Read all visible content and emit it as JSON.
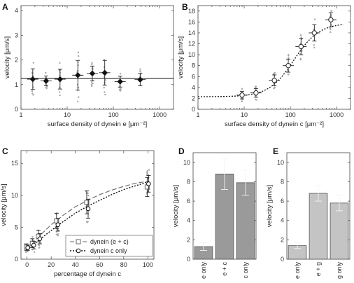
{
  "chart_data": [
    {
      "panel": "A",
      "type": "scatter",
      "xscale": "log",
      "xlim": [
        1,
        2000
      ],
      "ylim": [
        0,
        4.2
      ],
      "xticks": [
        "1",
        "10",
        "100",
        "1000"
      ],
      "yticks": [
        "0",
        "1",
        "2",
        "3",
        "4"
      ],
      "xlabel": "surface density of dynein e [μm⁻²]",
      "ylabel": "velocity [μm/s]",
      "means": [
        {
          "x": 1.8,
          "y": 1.22,
          "err": 0.42
        },
        {
          "x": 3.5,
          "y": 1.15,
          "err": 0.2
        },
        {
          "x": 7,
          "y": 1.22,
          "err": 0.4
        },
        {
          "x": 17,
          "y": 1.38,
          "err": 0.6
        },
        {
          "x": 35,
          "y": 1.45,
          "err": 0.3
        },
        {
          "x": 65,
          "y": 1.48,
          "err": 0.5
        },
        {
          "x": 140,
          "y": 1.12,
          "err": 0.22
        },
        {
          "x": 380,
          "y": 1.2,
          "err": 0.25
        }
      ],
      "fit_line_y": 1.25
    },
    {
      "panel": "B",
      "type": "scatter",
      "xscale": "log",
      "xlim": [
        1,
        2000
      ],
      "ylim": [
        0,
        19
      ],
      "xticks": [
        "1",
        "10",
        "100",
        "1000"
      ],
      "yticks": [
        "0",
        "2",
        "4",
        "6",
        "8",
        "10",
        "12",
        "14",
        "16",
        "18"
      ],
      "xlabel": "surface density of dynein c [μm⁻²]",
      "ylabel": "velocity [μm/s]",
      "means": [
        {
          "x": 9,
          "y": 2.6,
          "err": 0.7
        },
        {
          "x": 18,
          "y": 3.0,
          "err": 0.8
        },
        {
          "x": 45,
          "y": 5.3,
          "err": 1.0
        },
        {
          "x": 90,
          "y": 8.0,
          "err": 1.2
        },
        {
          "x": 170,
          "y": 11.5,
          "err": 1.5
        },
        {
          "x": 330,
          "y": 14.0,
          "err": 1.5
        },
        {
          "x": 750,
          "y": 16.4,
          "err": 1.3
        }
      ],
      "fit": {
        "min": 2.3,
        "max": 15.8,
        "x50": 120,
        "hill": 1.6
      }
    },
    {
      "panel": "C",
      "type": "line",
      "xlim": [
        -5,
        105
      ],
      "ylim": [
        0,
        17
      ],
      "xticks": [
        "0",
        "20",
        "40",
        "60",
        "80",
        "100"
      ],
      "yticks": [
        "0",
        "5",
        "10",
        "15"
      ],
      "xlabel": "percentage of dynein c",
      "ylabel": "velocity [μm/s]",
      "x": [
        0,
        5,
        10,
        25,
        50,
        100
      ],
      "series": [
        {
          "name": "dynein (e + c)",
          "values": [
            1.9,
            2.5,
            3.6,
            6.0,
            8.9,
            11.3
          ],
          "err": [
            0.5,
            0.7,
            0.9,
            1.2,
            1.8,
            1.5
          ]
        },
        {
          "name": "dynein c only",
          "values": [
            1.8,
            2.2,
            3.2,
            5.4,
            7.9,
            11.8
          ],
          "err": [
            0.4,
            0.6,
            0.8,
            1.0,
            1.5,
            1.3
          ]
        }
      ],
      "fits": [
        {
          "name": "dynein (e + c)",
          "x": [
            0,
            10,
            20,
            30,
            40,
            50,
            60,
            70,
            80,
            90,
            100
          ],
          "y": [
            1.5,
            3.6,
            5.4,
            6.9,
            8.2,
            9.2,
            10.1,
            10.8,
            11.4,
            11.9,
            12.2
          ]
        },
        {
          "name": "dynein c only",
          "x": [
            0,
            10,
            20,
            30,
            40,
            50,
            60,
            70,
            80,
            90,
            100
          ],
          "y": [
            1.4,
            3.0,
            4.5,
            5.9,
            7.2,
            8.3,
            9.2,
            10.1,
            10.9,
            11.5,
            12.1
          ]
        }
      ]
    },
    {
      "panel": "D",
      "type": "bar",
      "ylim": [
        0,
        11
      ],
      "yticks": [
        "0",
        "2",
        "4",
        "6",
        "8",
        "10"
      ],
      "ylabel": "velocity [μm/s]",
      "categories": [
        "e only",
        "e + c",
        "c only"
      ],
      "values": [
        1.3,
        8.8,
        7.9
      ],
      "err": [
        0.4,
        1.6,
        1.3
      ],
      "color": "#9a9a9a"
    },
    {
      "panel": "E",
      "type": "bar",
      "ylim": [
        0,
        11
      ],
      "yticks": [
        "0",
        "2",
        "4",
        "6",
        "8",
        "10"
      ],
      "ylabel": "velocity [μm/s]",
      "categories": [
        "e only",
        "e + g",
        "g only"
      ],
      "values": [
        1.4,
        6.8,
        5.8
      ],
      "err": [
        0.3,
        0.8,
        0.8
      ],
      "color": "#c4c4c4"
    }
  ]
}
